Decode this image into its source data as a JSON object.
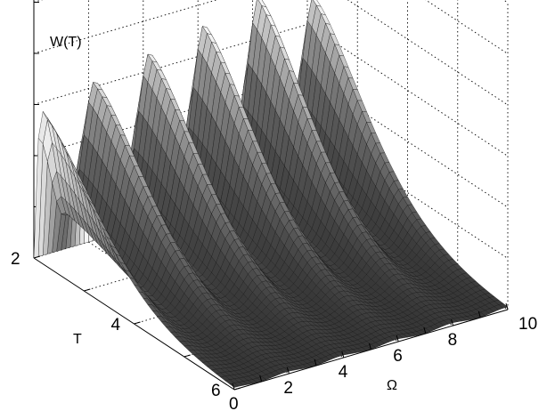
{
  "chart_data": {
    "type": "surface",
    "zlabel": "W(T)",
    "xlabel": "Ω",
    "ylabel": "T",
    "x_ticks": [
      "0",
      "2",
      "4",
      "6",
      "8",
      "10"
    ],
    "y_ticks": [
      "2",
      "4",
      "6"
    ],
    "xlim": [
      0,
      10
    ],
    "ylim": [
      2,
      6
    ],
    "grid": true,
    "colormap": "gray",
    "ridges": [
      {
        "omega": 0.0,
        "peak_T": 2.2,
        "height": 0.62
      },
      {
        "omega": 1.9,
        "peak_T": 2.1,
        "height": 0.7
      },
      {
        "omega": 3.9,
        "peak_T": 2.1,
        "height": 0.76
      },
      {
        "omega": 5.9,
        "peak_T": 2.0,
        "height": 0.82
      },
      {
        "omega": 7.9,
        "peak_T": 2.0,
        "height": 0.88
      },
      {
        "omega": 9.9,
        "peak_T": 2.0,
        "height": 0.8
      }
    ]
  }
}
